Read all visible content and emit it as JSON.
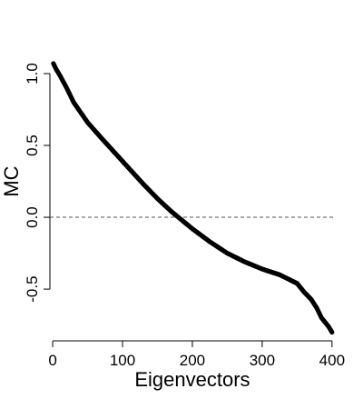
{
  "chart_data": {
    "type": "scatter",
    "title": "",
    "xlabel": "Eigenvectors",
    "ylabel": "MC",
    "xlim": [
      -4,
      408
    ],
    "ylim": [
      -0.86,
      1.12
    ],
    "x_ticks": [
      0,
      100,
      200,
      300,
      400
    ],
    "x_tick_labels": [
      "0",
      "100",
      "200",
      "300",
      "400"
    ],
    "y_ticks": [
      -0.5,
      0.0,
      0.5,
      1.0
    ],
    "y_tick_labels": [
      "-0.5",
      "0.0",
      "0.5",
      "1.0"
    ],
    "reference_line": {
      "y": 0.0,
      "style": "dashed"
    },
    "grid": false,
    "legend": "none",
    "point_color": "#000000",
    "curve_anchors": [
      [
        1,
        1.07
      ],
      [
        5,
        1.03
      ],
      [
        10,
        0.99
      ],
      [
        20,
        0.9
      ],
      [
        30,
        0.8
      ],
      [
        50,
        0.66
      ],
      [
        70,
        0.55
      ],
      [
        100,
        0.39
      ],
      [
        130,
        0.23
      ],
      [
        150,
        0.13
      ],
      [
        170,
        0.04
      ],
      [
        180,
        0.0
      ],
      [
        200,
        -0.08
      ],
      [
        225,
        -0.17
      ],
      [
        250,
        -0.25
      ],
      [
        275,
        -0.31
      ],
      [
        300,
        -0.36
      ],
      [
        325,
        -0.4
      ],
      [
        350,
        -0.46
      ],
      [
        360,
        -0.52
      ],
      [
        370,
        -0.57
      ],
      [
        378,
        -0.63
      ],
      [
        385,
        -0.7
      ],
      [
        395,
        -0.76
      ],
      [
        400,
        -0.8
      ]
    ],
    "n_points": 400
  }
}
